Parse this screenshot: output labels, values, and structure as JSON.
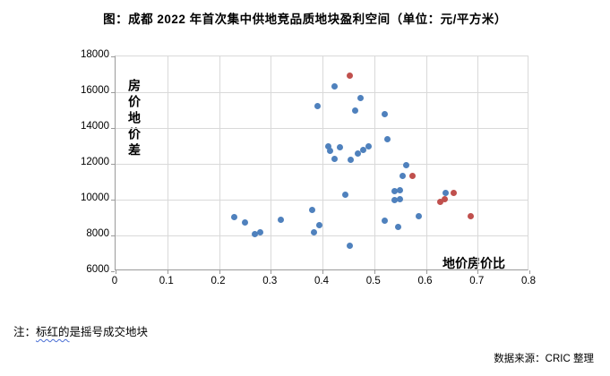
{
  "title": "图：成都 2022 年首次集中供地竞品质地块盈利空间（单位：元/平方米）",
  "note": {
    "prefix": "注：",
    "highlighted": "标红的",
    "rest": "是摇号成交地块"
  },
  "source": "数据来源：CRIC 整理",
  "colors": {
    "blue_marker": "#4F81BD",
    "red_marker": "#C0504D",
    "gridline": "#d9d9d9",
    "axis": "#9a9a9a",
    "note_underline": "#4a6fd4"
  },
  "chart_data": {
    "type": "scatter",
    "title": "图：成都 2022 年首次集中供地竞品质地块盈利空间（单位：元/平方米）",
    "xlabel": "地价房价比",
    "ylabel": "房价地价差",
    "xlim": [
      0,
      0.8
    ],
    "ylim": [
      6000,
      18000
    ],
    "x_ticks": [
      0,
      0.1,
      0.2,
      0.3,
      0.4,
      0.5,
      0.6,
      0.7,
      0.8
    ],
    "x_tick_labels": [
      "0",
      "0.1",
      "0.2",
      "0.3",
      "0.4",
      "0.5",
      "0.6",
      "0.7",
      "0.8"
    ],
    "y_ticks": [
      6000,
      8000,
      10000,
      12000,
      14000,
      16000,
      18000
    ],
    "y_tick_labels": [
      "6000",
      "8000",
      "10000",
      "12000",
      "14000",
      "16000",
      "18000"
    ],
    "grid": true,
    "legend": "none",
    "series": [
      {
        "name": "blue",
        "color": "#4F81BD",
        "points": [
          [
            0.23,
            9050
          ],
          [
            0.25,
            8750
          ],
          [
            0.27,
            8080
          ],
          [
            0.28,
            8200
          ],
          [
            0.32,
            8900
          ],
          [
            0.38,
            9440
          ],
          [
            0.383,
            8200
          ],
          [
            0.394,
            8570
          ],
          [
            0.39,
            15230
          ],
          [
            0.424,
            16340
          ],
          [
            0.464,
            15000
          ],
          [
            0.473,
            15700
          ],
          [
            0.52,
            14800
          ],
          [
            0.525,
            13400
          ],
          [
            0.412,
            12960
          ],
          [
            0.415,
            12730
          ],
          [
            0.433,
            12930
          ],
          [
            0.424,
            12300
          ],
          [
            0.455,
            12250
          ],
          [
            0.468,
            12600
          ],
          [
            0.478,
            12800
          ],
          [
            0.49,
            12980
          ],
          [
            0.445,
            10270
          ],
          [
            0.453,
            7450
          ],
          [
            0.52,
            8850
          ],
          [
            0.547,
            8490
          ],
          [
            0.586,
            9100
          ],
          [
            0.539,
            10490
          ],
          [
            0.549,
            10550
          ],
          [
            0.54,
            9970
          ],
          [
            0.55,
            10040
          ],
          [
            0.555,
            11320
          ],
          [
            0.562,
            11950
          ],
          [
            0.638,
            10400
          ]
        ]
      },
      {
        "name": "red (摇号成交地块)",
        "color": "#C0504D",
        "points": [
          [
            0.453,
            16950
          ],
          [
            0.574,
            11320
          ],
          [
            0.627,
            9900
          ],
          [
            0.636,
            10020
          ],
          [
            0.654,
            10400
          ],
          [
            0.687,
            9100
          ]
        ]
      }
    ]
  }
}
